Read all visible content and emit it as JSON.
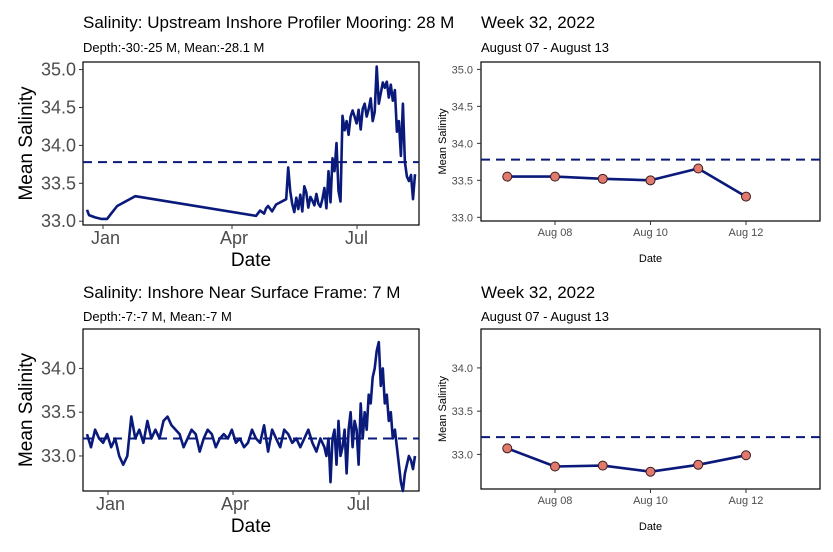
{
  "colors": {
    "line": "#0a1a7a",
    "dash": "#0a1a7a",
    "point_fill": "#e07a6e",
    "point_stroke": "#3a1a1a"
  },
  "chart_data": [
    {
      "id": "p1",
      "type": "line",
      "title": "Salinity: Upstream Inshore Profiler Mooring: 28 M",
      "subtitle": "Depth:-30:-25 M, Mean:-28.1 M",
      "xlabel": "Date",
      "ylabel": "Mean Salinity",
      "x_ticks": [
        "Jan",
        "Apr",
        "Jul"
      ],
      "y_ticks": [
        "33.0",
        "33.5",
        "34.0",
        "34.5",
        "35.0"
      ],
      "xlim": [
        0,
        8.35
      ],
      "ylim": [
        32.95,
        35.1
      ],
      "reference_line": 33.78,
      "series": [
        {
          "x": [
            0.1,
            0.15,
            0.3,
            0.45,
            0.6,
            0.7,
            0.85,
            1.3,
            4.3,
            4.4,
            4.5,
            4.55,
            4.6,
            4.7,
            4.8,
            5.05,
            5.1,
            5.15,
            5.2,
            5.25,
            5.3,
            5.35,
            5.4,
            5.45,
            5.5,
            5.55,
            5.6,
            5.65,
            5.7,
            5.75,
            5.8,
            5.85,
            5.9,
            5.95,
            6.0,
            6.05,
            6.1,
            6.15,
            6.2,
            6.25,
            6.3,
            6.35,
            6.4,
            6.45,
            6.5,
            6.55,
            6.6,
            6.65,
            6.7,
            6.75,
            6.8,
            6.85,
            6.9,
            6.95,
            7.0,
            7.05,
            7.1,
            7.15,
            7.2,
            7.25,
            7.3,
            7.35,
            7.4,
            7.45,
            7.5,
            7.55,
            7.6,
            7.65,
            7.7,
            7.75,
            7.8,
            7.85,
            7.9,
            7.95,
            8.0,
            8.05,
            8.1,
            8.15,
            8.2,
            8.25
          ],
          "y": [
            33.15,
            33.08,
            33.05,
            33.03,
            33.03,
            33.1,
            33.2,
            33.33,
            33.07,
            33.14,
            33.1,
            33.17,
            33.2,
            33.13,
            33.22,
            33.29,
            33.71,
            33.4,
            33.23,
            33.12,
            33.31,
            33.16,
            33.35,
            33.13,
            33.46,
            33.38,
            33.18,
            33.32,
            33.27,
            33.21,
            33.36,
            33.23,
            33.19,
            33.29,
            33.44,
            33.17,
            33.66,
            33.25,
            33.83,
            33.66,
            34.03,
            33.4,
            33.26,
            34.39,
            34.2,
            34.32,
            34.14,
            34.38,
            34.46,
            34.38,
            34.29,
            34.47,
            34.21,
            34.48,
            34.55,
            34.38,
            34.48,
            34.62,
            34.32,
            34.44,
            35.04,
            34.55,
            34.69,
            34.83,
            34.76,
            34.84,
            34.63,
            34.8,
            34.59,
            34.73,
            34.18,
            34.32,
            33.86,
            34.55,
            33.78,
            33.59,
            33.53,
            33.61,
            33.29,
            33.62
          ]
        }
      ]
    },
    {
      "id": "p2",
      "type": "line",
      "title": "Week 32, 2022",
      "subtitle": "August 07 - August 13",
      "xlabel": "Date",
      "ylabel": "Mean Salinity",
      "x_ticks": [
        "Aug 08",
        "Aug 10",
        "Aug 12"
      ],
      "y_ticks": [
        "33.0",
        "33.5",
        "34.0",
        "34.5",
        "35.0"
      ],
      "xlim": [
        -0.55,
        6.55
      ],
      "ylim": [
        32.95,
        35.1
      ],
      "reference_line": 33.78,
      "series": [
        {
          "x": [
            0,
            1,
            2,
            3,
            4,
            5
          ],
          "y": [
            33.55,
            33.55,
            33.52,
            33.5,
            33.66,
            33.28
          ]
        }
      ]
    },
    {
      "id": "p3",
      "type": "line",
      "title": "Salinity: Inshore Near Surface Frame: 7 M",
      "subtitle": "Depth:-7:-7 M, Mean:-7 M",
      "xlabel": "Date",
      "ylabel": "Mean Salinity",
      "x_ticks": [
        "Jan",
        "Apr",
        "Jul"
      ],
      "y_ticks": [
        "33.0",
        "33.5",
        "34.0"
      ],
      "xlim": [
        0,
        8.35
      ],
      "ylim": [
        32.6,
        34.45
      ],
      "reference_line": 33.2,
      "series": [
        {
          "x": [
            0.1,
            0.2,
            0.3,
            0.4,
            0.5,
            0.6,
            0.7,
            0.8,
            0.9,
            1.0,
            1.1,
            1.2,
            1.3,
            1.4,
            1.5,
            1.6,
            1.7,
            1.8,
            1.9,
            2.0,
            2.1,
            2.2,
            2.3,
            2.4,
            2.5,
            2.6,
            2.7,
            2.8,
            2.9,
            3.0,
            3.1,
            3.2,
            3.3,
            3.4,
            3.5,
            3.6,
            3.7,
            3.8,
            3.9,
            4.0,
            4.1,
            4.2,
            4.3,
            4.4,
            4.5,
            4.6,
            4.7,
            4.8,
            4.9,
            5.0,
            5.1,
            5.2,
            5.3,
            5.4,
            5.5,
            5.6,
            5.7,
            5.8,
            5.9,
            6.0,
            6.05,
            6.1,
            6.15,
            6.2,
            6.25,
            6.3,
            6.35,
            6.4,
            6.45,
            6.5,
            6.55,
            6.6,
            6.65,
            6.7,
            6.75,
            6.8,
            6.85,
            6.9,
            6.95,
            7.0,
            7.05,
            7.1,
            7.15,
            7.2,
            7.25,
            7.3,
            7.35,
            7.4,
            7.45,
            7.5,
            7.55,
            7.6,
            7.65,
            7.7,
            7.75,
            7.8,
            7.85,
            7.9,
            7.95,
            8.0,
            8.05,
            8.1,
            8.15,
            8.2,
            8.25
          ],
          "y": [
            33.25,
            33.1,
            33.3,
            33.2,
            33.15,
            33.25,
            33.1,
            33.2,
            33.0,
            32.9,
            33.0,
            33.45,
            33.2,
            33.3,
            33.15,
            33.4,
            33.2,
            33.3,
            33.2,
            33.4,
            33.45,
            33.35,
            33.3,
            33.25,
            33.1,
            33.2,
            33.3,
            33.25,
            33.05,
            33.2,
            33.3,
            33.25,
            33.1,
            33.2,
            33.25,
            33.2,
            33.3,
            33.15,
            33.2,
            33.1,
            33.15,
            33.3,
            33.2,
            33.15,
            33.35,
            33.05,
            33.3,
            33.2,
            33.1,
            33.3,
            33.25,
            33.15,
            33.2,
            33.1,
            33.2,
            33.3,
            33.15,
            33.05,
            33.2,
            33.1,
            33.0,
            33.2,
            32.7,
            33.2,
            33.3,
            32.9,
            33.4,
            33.0,
            33.1,
            33.3,
            32.8,
            33.3,
            33.5,
            33.1,
            33.4,
            33.3,
            32.9,
            33.6,
            33.2,
            33.5,
            33.3,
            33.7,
            33.6,
            33.9,
            34.0,
            34.2,
            34.3,
            33.8,
            34.0,
            33.6,
            33.7,
            33.4,
            33.5,
            33.2,
            33.3,
            33.1,
            32.9,
            32.7,
            32.6,
            32.8,
            32.9,
            33.0,
            32.95,
            32.85,
            33.0
          ]
        }
      ]
    },
    {
      "id": "p4",
      "type": "line",
      "title": "Week 32, 2022",
      "subtitle": "August 07 - August 13",
      "xlabel": "Date",
      "ylabel": "Mean Salinity",
      "x_ticks": [
        "Aug 08",
        "Aug 10",
        "Aug 12"
      ],
      "y_ticks": [
        "33.0",
        "33.5",
        "34.0"
      ],
      "xlim": [
        -0.55,
        6.55
      ],
      "ylim": [
        32.6,
        34.45
      ],
      "reference_line": 33.2,
      "series": [
        {
          "x": [
            0,
            1,
            2,
            3,
            4,
            5
          ],
          "y": [
            33.07,
            32.86,
            32.87,
            32.8,
            32.88,
            32.99
          ]
        }
      ]
    }
  ]
}
